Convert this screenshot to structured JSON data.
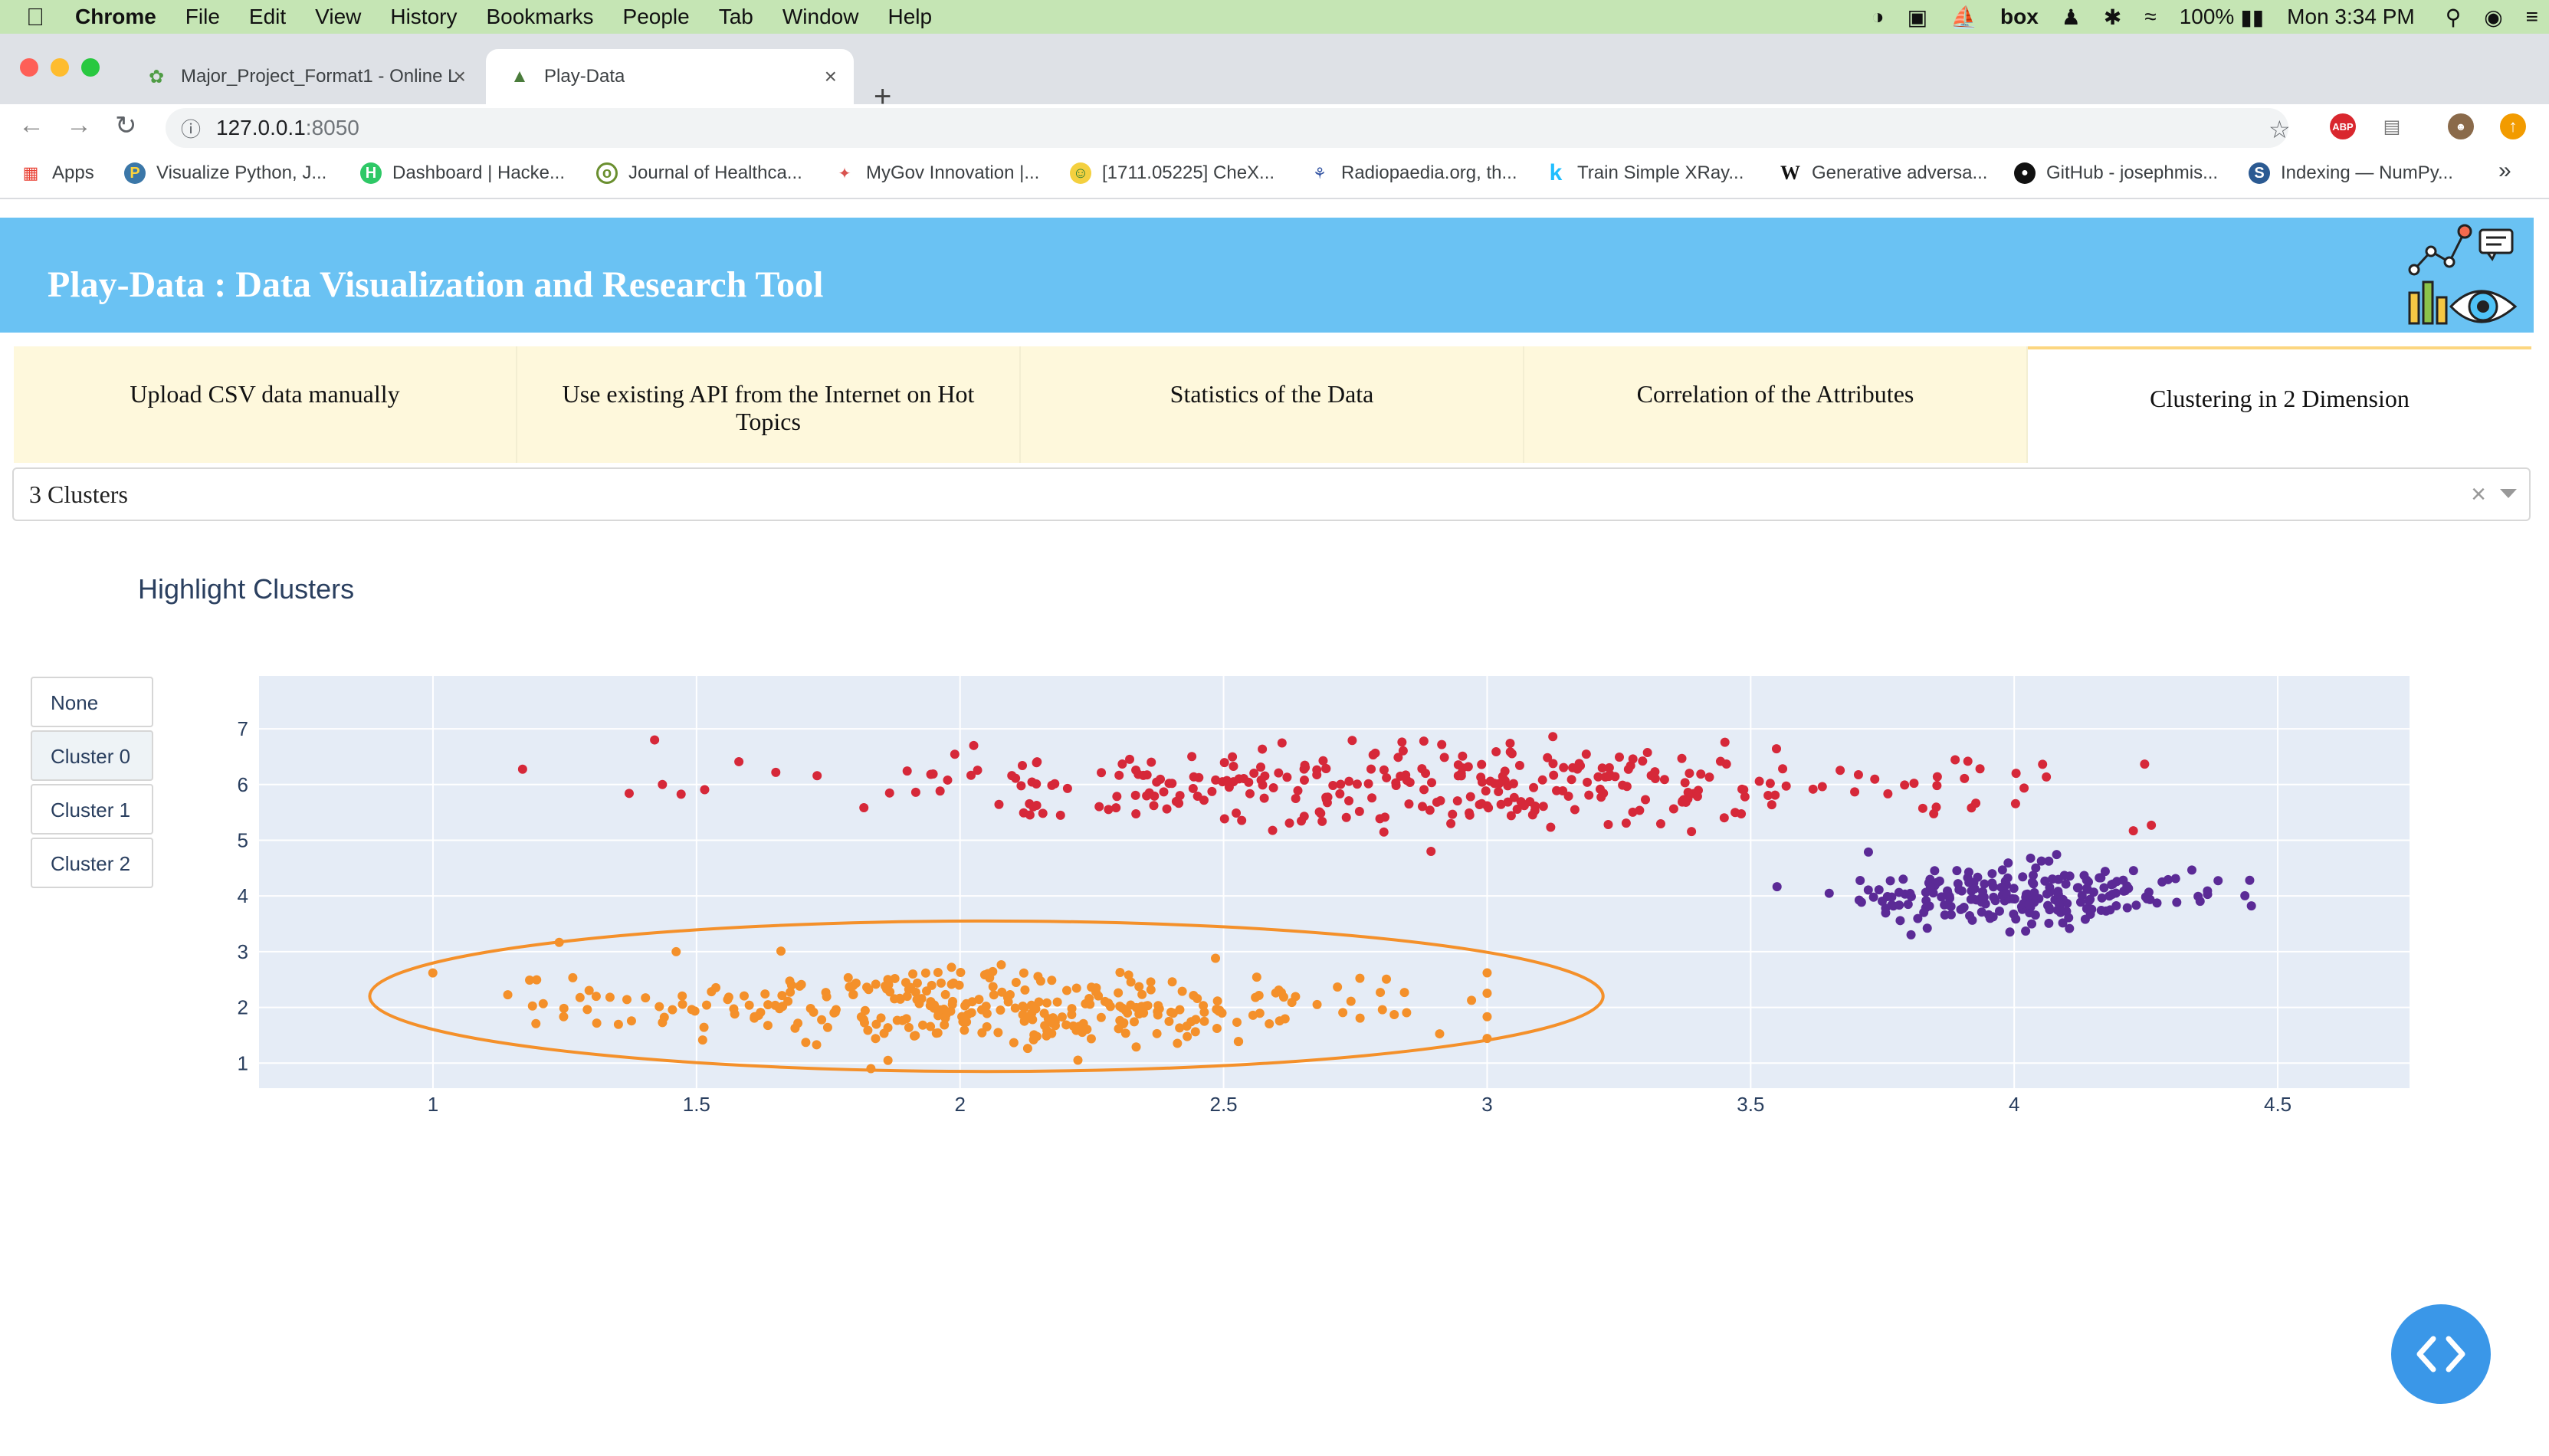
{
  "menubar": {
    "apple": "",
    "items": [
      "Chrome",
      "File",
      "Edit",
      "View",
      "History",
      "Bookmarks",
      "People",
      "Tab",
      "Window",
      "Help"
    ],
    "battery": "100%",
    "clock": "Mon 3:34 PM",
    "box_label": "box"
  },
  "browser": {
    "tabs": [
      {
        "title": "Major_Project_Format1 - Online L",
        "icon": "overleaf-icon"
      },
      {
        "title": "Play-Data",
        "icon": "play-data-icon"
      }
    ],
    "url_host": "127.0.0.1",
    "url_port": ":8050",
    "extensions": [
      "ABP"
    ],
    "bookmarks": [
      {
        "label": "Apps",
        "icon": "apps-grid-icon"
      },
      {
        "label": "Visualize Python, J...",
        "icon": "python-icon"
      },
      {
        "label": "Dashboard | Hacke...",
        "icon": "hackerrank-icon"
      },
      {
        "label": "Journal of Healthca...",
        "icon": "journal-icon"
      },
      {
        "label": "MyGov Innovation |...",
        "icon": "mygov-icon"
      },
      {
        "label": "[1711.05225] CheX...",
        "icon": "arxiv-icon"
      },
      {
        "label": "Radiopaedia.org, th...",
        "icon": "radiopaedia-icon"
      },
      {
        "label": "Train Simple XRay...",
        "icon": "kaggle-icon"
      },
      {
        "label": "Generative adversa...",
        "icon": "wikipedia-icon"
      },
      {
        "label": "GitHub - josephmis...",
        "icon": "github-icon"
      },
      {
        "label": "Indexing — NumPy...",
        "icon": "numpy-icon"
      }
    ],
    "bookmarks_overflow": "»"
  },
  "app": {
    "title": "Play-Data : Data Visualization and Research Tool",
    "tabs": [
      {
        "label": "Upload CSV data manually"
      },
      {
        "label": "Use existing API from the Internet on Hot Topics"
      },
      {
        "label": "Statistics of the Data"
      },
      {
        "label": "Correlation of the Attributes"
      },
      {
        "label": "Clustering in 2 Dimension",
        "selected": true
      }
    ],
    "dropdown_value": "3 Clusters",
    "dropdown_clear": "×",
    "highlight_title": "Highlight Clusters",
    "highlight_buttons": [
      "None",
      "Cluster 0",
      "Cluster 1",
      "Cluster 2"
    ]
  },
  "chart_data": {
    "type": "scatter",
    "xlim": [
      0.67,
      4.75
    ],
    "ylim": [
      0.55,
      7.95
    ],
    "x_ticks": [
      1,
      1.5,
      2,
      2.5,
      3,
      3.5,
      4,
      4.5
    ],
    "y_ticks": [
      1,
      2,
      3,
      4,
      5,
      6,
      7
    ],
    "grid": true,
    "plot_bg": "#e5ecf6",
    "series": [
      {
        "color": "#f4902a",
        "cluster": "orange",
        "center": [
          2.05,
          2.0
        ],
        "spread": [
          0.38,
          0.33
        ],
        "range_x": [
          0.88,
          3.0
        ],
        "range_y": [
          0.9,
          3.6
        ],
        "count": 330,
        "highlight_ellipse": {
          "cx": 2.05,
          "cy": 2.2,
          "rx": 1.17,
          "ry": 1.35
        }
      },
      {
        "color": "#d62839",
        "cluster": "red",
        "center": [
          2.85,
          6.0
        ],
        "spread": [
          0.55,
          0.35
        ],
        "range_x": [
          1.17,
          4.55
        ],
        "range_y": [
          4.8,
          7.4
        ],
        "count": 320
      },
      {
        "color": "#5b2a96",
        "cluster": "purple",
        "center": [
          4.0,
          4.0
        ],
        "spread": [
          0.18,
          0.28
        ],
        "range_x": [
          3.55,
          4.45
        ],
        "range_y": [
          3.1,
          4.95
        ],
        "count": 220
      }
    ]
  }
}
